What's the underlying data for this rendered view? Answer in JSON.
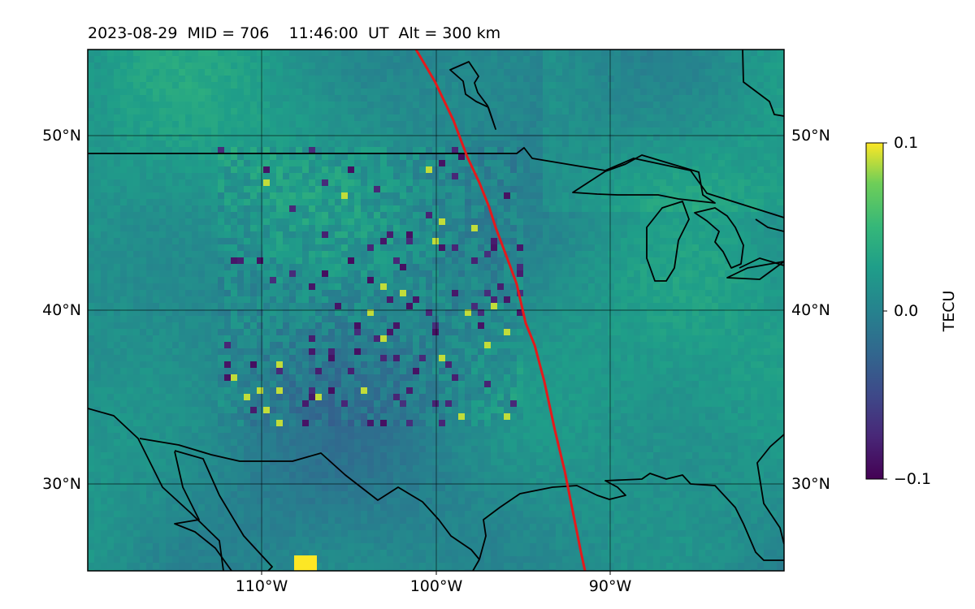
{
  "title": "2023-08-29  MID = 706    11:46:00  UT  Alt = 300 km",
  "map": {
    "lat_ticks": [
      "50°N",
      "40°N",
      "30°N"
    ],
    "lon_ticks": [
      "110°W",
      "100°W",
      "90°W"
    ],
    "lon_range": [
      -120,
      -80
    ],
    "lat_range": [
      25,
      55
    ],
    "grid": true,
    "coastlines": true,
    "terminator_color": "#e31a1c"
  },
  "colorbar": {
    "label": "TECU",
    "ticks": [
      "0.1",
      "0.0",
      "−0.1"
    ],
    "range": [
      -0.1,
      0.1
    ],
    "colormap": "viridis",
    "colors": [
      "#440154",
      "#3b528b",
      "#21918c",
      "#5ec962",
      "#fde725"
    ]
  }
}
